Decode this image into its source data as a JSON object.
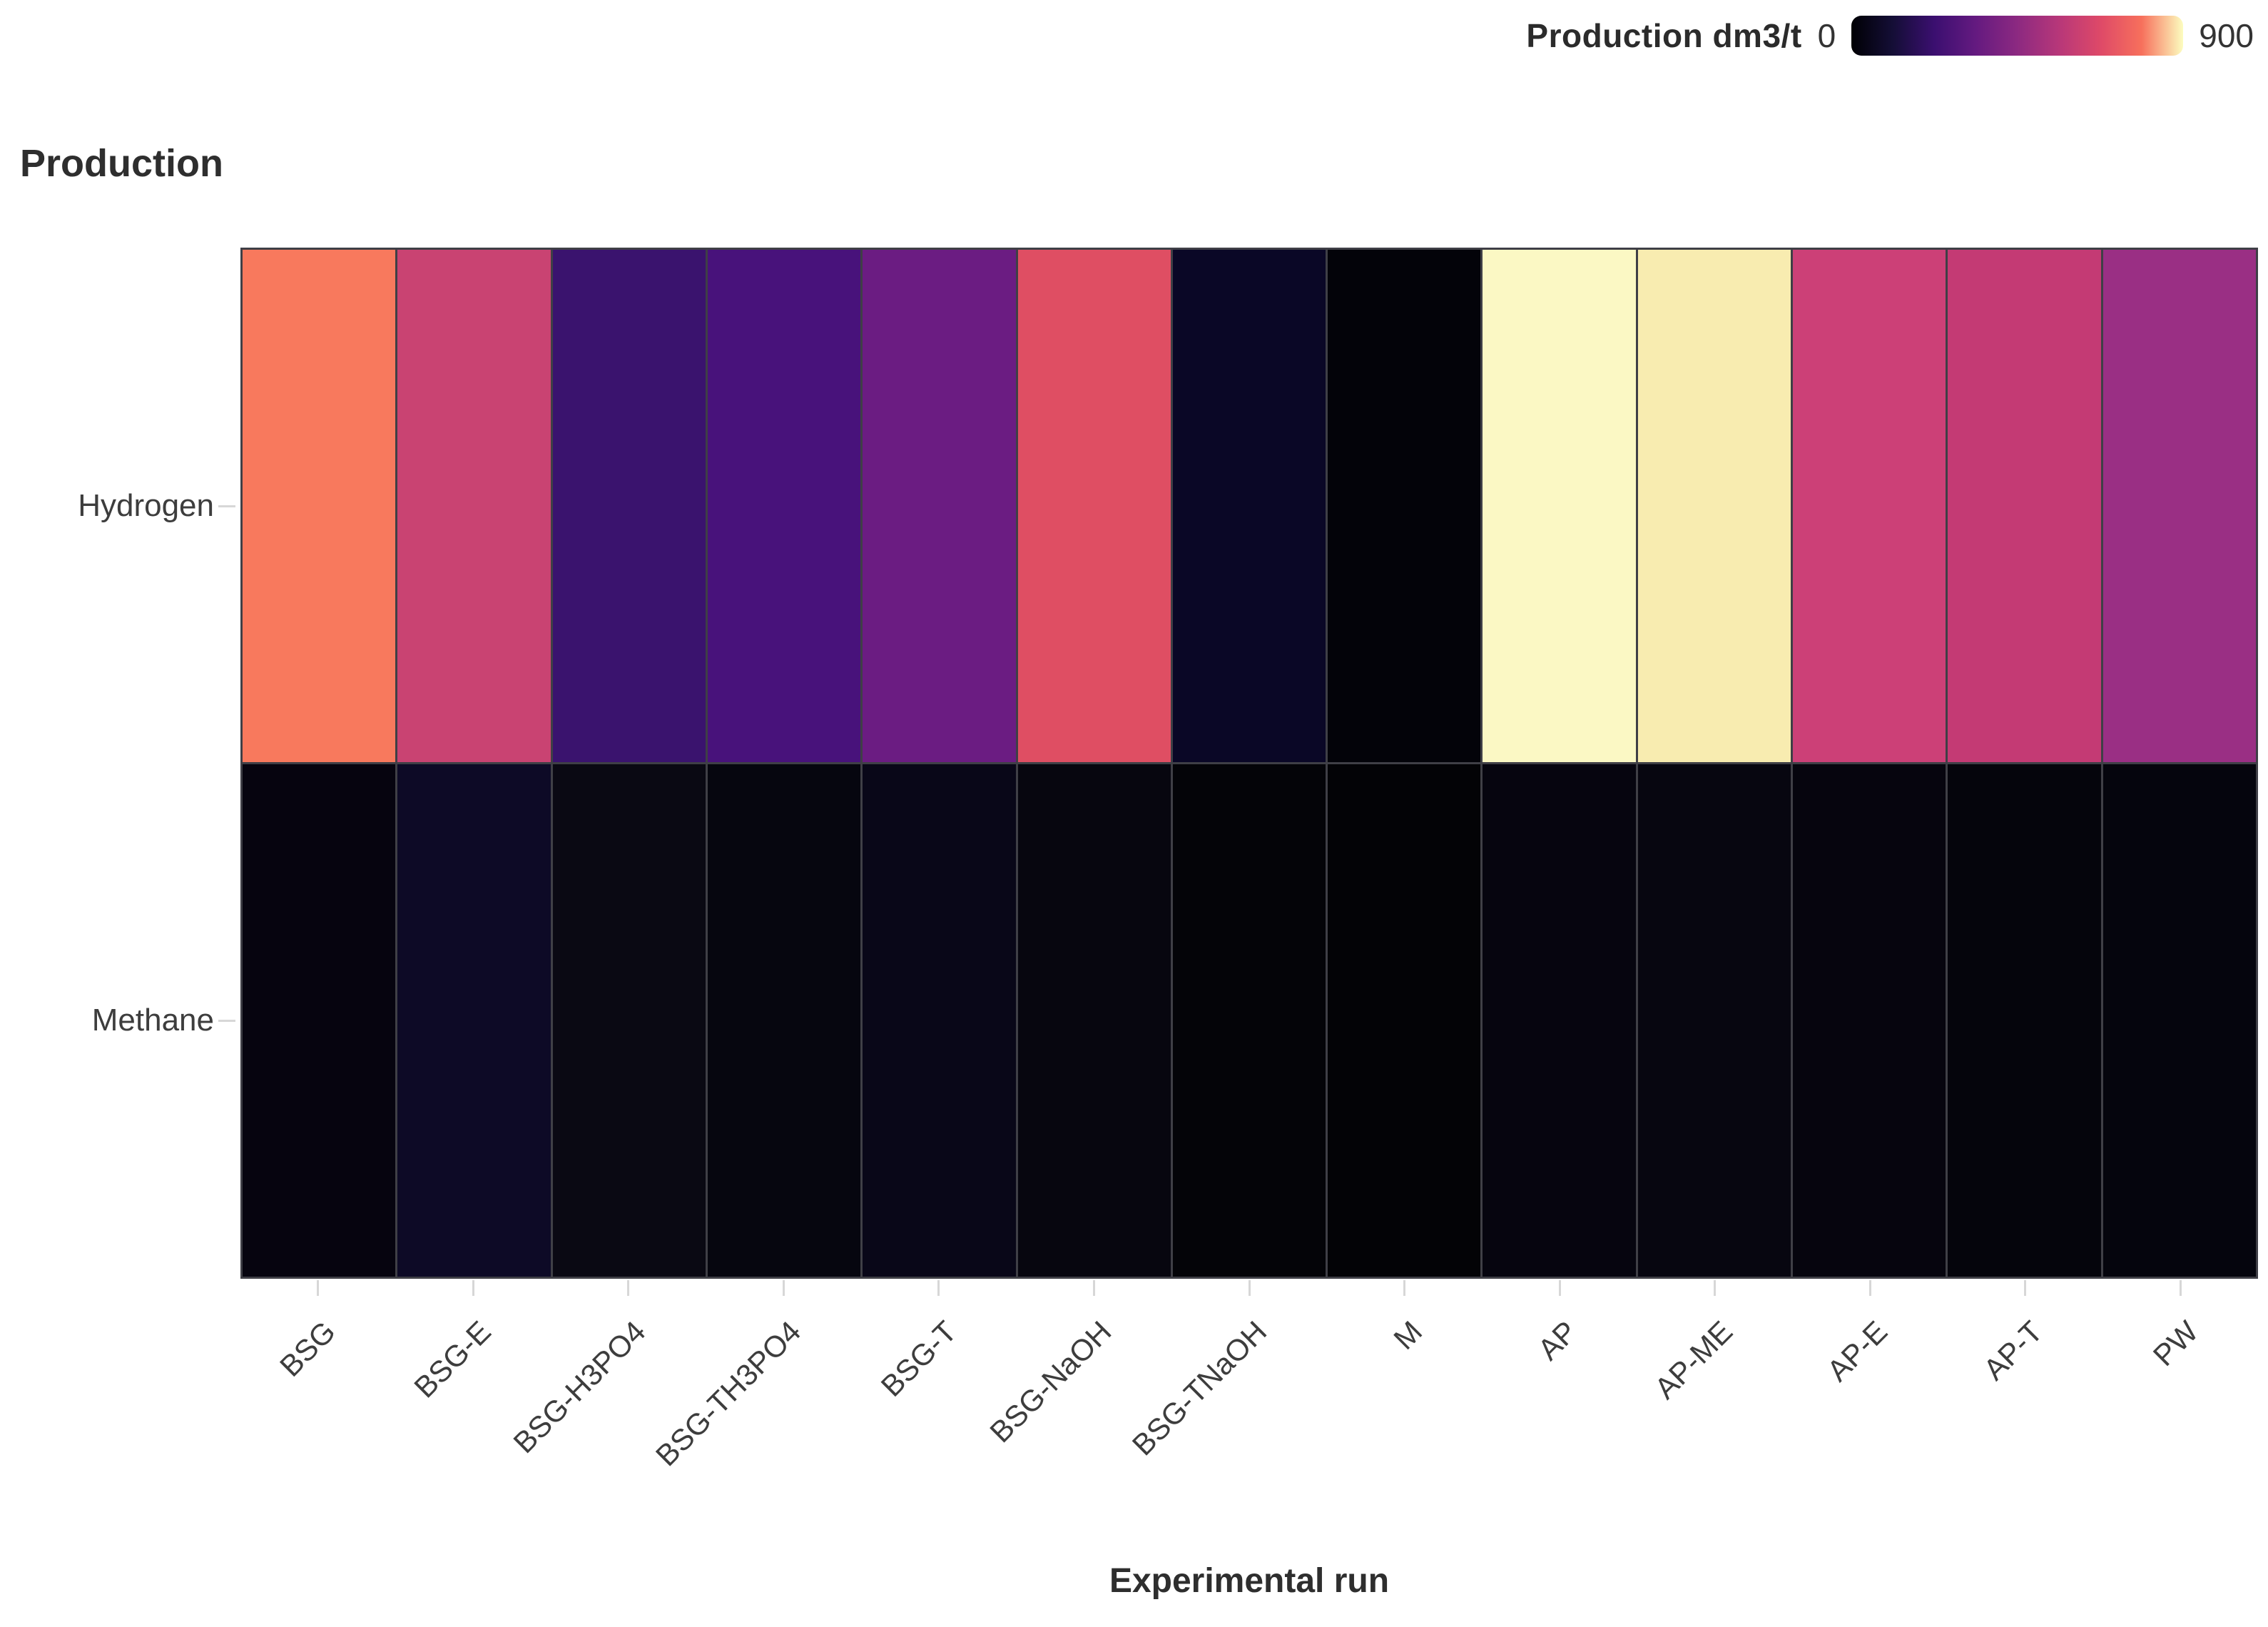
{
  "page": {
    "background": "#ffffff"
  },
  "legend": {
    "title": "Production dm3/t",
    "min_label": "0",
    "max_label": "900",
    "gradient_stops": [
      "#000004",
      "#140e36",
      "#3b0f70",
      "#641a80",
      "#8c2981",
      "#b73779",
      "#de4968",
      "#f7705c",
      "#fcfdbf"
    ]
  },
  "colors": {
    "grid_line": "#3f3f46",
    "tick_mark": "#d7d7d7",
    "label_text": "#3d3d3d",
    "title_text": "#2e2e2e"
  },
  "chart_data": {
    "type": "heatmap",
    "title": "Production",
    "xlabel": "Experimental run",
    "ylabel": "",
    "colormap": "magma",
    "zlim": [
      0,
      900
    ],
    "legend_position": "top-right",
    "grid": false,
    "colorbar": {
      "label": "Production dm3/t",
      "min": 0,
      "max": 900
    },
    "x_categories": [
      "BSG",
      "BSG-E",
      "BSG-H3PO4",
      "BSG-TH3PO4",
      "BSG-T",
      "BSG-NaOH",
      "BSG-TNaOH",
      "M",
      "AP",
      "AP-ME",
      "AP-E",
      "AP-T",
      "PW"
    ],
    "y_categories": [
      "Hydrogen",
      "Methane"
    ],
    "series": [
      {
        "name": "Hydrogen",
        "values": [
          780,
          590,
          215,
          265,
          350,
          665,
          55,
          10,
          885,
          845,
          600,
          565,
          480
        ]
      },
      {
        "name": "Methane",
        "values": [
          15,
          70,
          25,
          15,
          30,
          15,
          8,
          5,
          15,
          12,
          12,
          10,
          10
        ]
      }
    ],
    "cell_colors": [
      [
        "#f8795d",
        "#c94372",
        "#3a136e",
        "#48127b",
        "#6b1c82",
        "#df4e63",
        "#0a0726",
        "#030309",
        "#fbf8c4",
        "#f8ecb0",
        "#cc4077",
        "#c43a74",
        "#9a2f84"
      ],
      [
        "#06040f",
        "#0d0a26",
        "#0a0913",
        "#06060f",
        "#090718",
        "#07060f",
        "#040408",
        "#030306",
        "#06050f",
        "#070610",
        "#06050e",
        "#05050c",
        "#05050d"
      ]
    ]
  }
}
